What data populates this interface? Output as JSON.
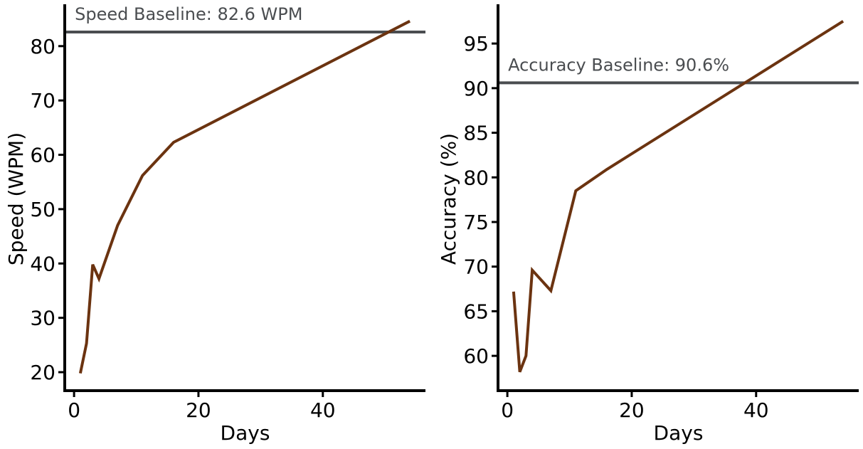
{
  "colors": {
    "series": "#6b3310",
    "baseline": "#4a4d50",
    "axis": "#000000"
  },
  "chart_data": [
    {
      "type": "line",
      "xlabel": "Days",
      "ylabel": "Speed (WPM)",
      "xlim": [
        -1.5,
        56.5
      ],
      "ylim": [
        16.6,
        87.7
      ],
      "xticks": [
        0,
        20,
        40
      ],
      "yticks": [
        20,
        30,
        40,
        50,
        60,
        70,
        80
      ],
      "grid": false,
      "series": [
        {
          "x": [
            1,
            2,
            3,
            4,
            7,
            11,
            16,
            54
          ],
          "y": [
            19.8,
            25.3,
            39.8,
            37.2,
            47.0,
            56.2,
            62.3,
            84.6
          ]
        }
      ],
      "baseline": {
        "value": 82.6,
        "label": "Speed Baseline: 82.6 WPM"
      }
    },
    {
      "type": "line",
      "xlabel": "Days",
      "ylabel": "Accuracy (%)",
      "xlim": [
        -1.5,
        56.5
      ],
      "ylim": [
        56.1,
        99.4
      ],
      "xticks": [
        0,
        20,
        40
      ],
      "yticks": [
        60,
        65,
        70,
        75,
        80,
        85,
        90,
        95
      ],
      "grid": false,
      "series": [
        {
          "x": [
            1,
            2,
            3,
            4,
            7,
            11,
            16,
            54
          ],
          "y": [
            67.2,
            58.2,
            60.0,
            69.6,
            67.3,
            78.5,
            80.9,
            97.5
          ]
        }
      ],
      "baseline": {
        "value": 90.6,
        "label": "Accuracy Baseline: 90.6%"
      }
    }
  ]
}
